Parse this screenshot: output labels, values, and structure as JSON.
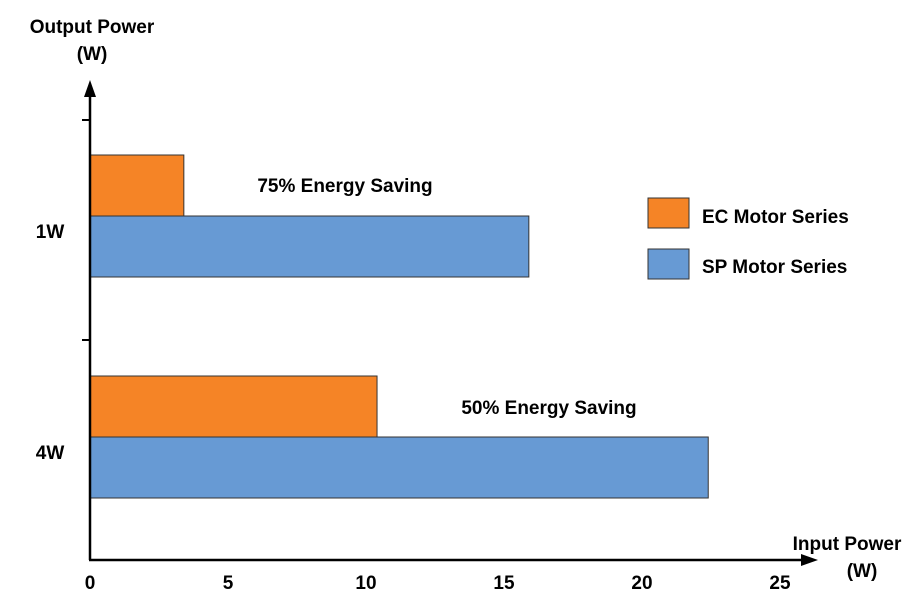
{
  "colors": {
    "ec": "#f58426",
    "sp": "#679ad4",
    "axis": "#000000",
    "bar_stroke": "#333333"
  },
  "chart_data": {
    "type": "bar",
    "orientation": "horizontal",
    "ylabel_line1": "Output Power",
    "ylabel_line2": "(W)",
    "xlabel_line1": "Input Power",
    "xlabel_line2": "(W)",
    "categories": [
      "1W",
      "4W"
    ],
    "series": [
      {
        "name": "EC Motor Series",
        "color": "#f58426",
        "values": [
          3.4,
          10.4
        ]
      },
      {
        "name": "SP Motor Series",
        "color": "#679ad4",
        "values": [
          15.9,
          22.4
        ]
      }
    ],
    "annotations": [
      "75% Energy Saving",
      "50% Energy Saving"
    ],
    "xticks": [
      0,
      5,
      10,
      15,
      20,
      25
    ],
    "xlim": [
      0,
      25
    ],
    "grid": false,
    "legend": "right"
  }
}
